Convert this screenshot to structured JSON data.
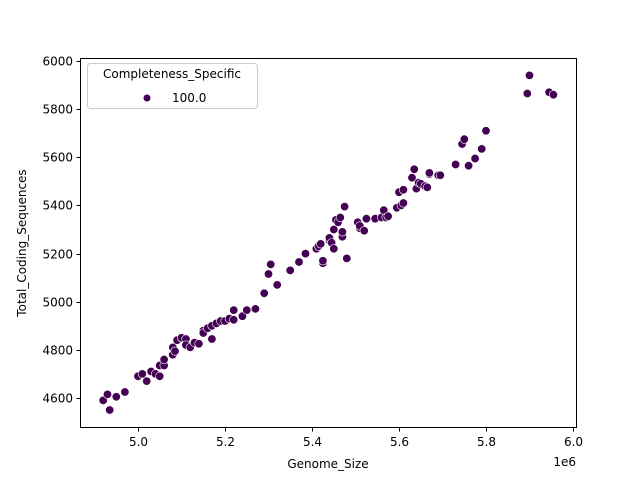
{
  "chart_data": {
    "type": "scatter",
    "title": "",
    "xlabel": "Genome_Size",
    "ylabel": "Total_Coding_Sequences",
    "x_offset_label": "1e6",
    "xlim": [
      4.88,
      6.02
    ],
    "ylim": [
      4470,
      6010
    ],
    "x_ticks": [
      5.0,
      5.2,
      5.4,
      5.6,
      5.8,
      6.0
    ],
    "x_tick_labels": [
      "5.0",
      "5.2",
      "5.4",
      "5.6",
      "5.8",
      "6.0"
    ],
    "y_ticks": [
      4600,
      4800,
      5000,
      5200,
      5400,
      5600,
      5800,
      6000
    ],
    "y_tick_labels": [
      "4600",
      "4800",
      "5000",
      "5200",
      "5400",
      "5600",
      "5800",
      "6000"
    ],
    "grid": false,
    "legend": {
      "title": "Completeness_Specific",
      "position": "upper left",
      "entries": [
        {
          "label": "100.0",
          "color": "#440154"
        }
      ]
    },
    "marker_color": "#440154",
    "series": [
      {
        "name": "100.0",
        "points": [
          [
            4.92,
            4590
          ],
          [
            4.93,
            4615
          ],
          [
            4.935,
            4550
          ],
          [
            4.95,
            4605
          ],
          [
            4.97,
            4625
          ],
          [
            5.0,
            4690
          ],
          [
            5.01,
            4700
          ],
          [
            5.02,
            4670
          ],
          [
            5.03,
            4710
          ],
          [
            5.04,
            4700
          ],
          [
            5.05,
            4735
          ],
          [
            5.06,
            4735
          ],
          [
            5.05,
            4690
          ],
          [
            5.06,
            4760
          ],
          [
            5.08,
            4780
          ],
          [
            5.08,
            4810
          ],
          [
            5.085,
            4795
          ],
          [
            5.09,
            4840
          ],
          [
            5.1,
            4850
          ],
          [
            5.11,
            4845
          ],
          [
            5.11,
            4820
          ],
          [
            5.12,
            4810
          ],
          [
            5.13,
            4830
          ],
          [
            5.14,
            4825
          ],
          [
            5.15,
            4880
          ],
          [
            5.15,
            4870
          ],
          [
            5.16,
            4890
          ],
          [
            5.17,
            4900
          ],
          [
            5.17,
            4845
          ],
          [
            5.18,
            4910
          ],
          [
            5.19,
            4920
          ],
          [
            5.2,
            4920
          ],
          [
            5.21,
            4930
          ],
          [
            5.22,
            4965
          ],
          [
            5.22,
            4925
          ],
          [
            5.24,
            4940
          ],
          [
            5.25,
            4965
          ],
          [
            5.27,
            4970
          ],
          [
            5.29,
            5035
          ],
          [
            5.3,
            5115
          ],
          [
            5.305,
            5155
          ],
          [
            5.32,
            5070
          ],
          [
            5.35,
            5130
          ],
          [
            5.37,
            5165
          ],
          [
            5.385,
            5200
          ],
          [
            5.41,
            5220
          ],
          [
            5.415,
            5230
          ],
          [
            5.42,
            5240
          ],
          [
            5.425,
            5160
          ],
          [
            5.425,
            5170
          ],
          [
            5.44,
            5255
          ],
          [
            5.44,
            5265
          ],
          [
            5.445,
            5245
          ],
          [
            5.45,
            5220
          ],
          [
            5.45,
            5300
          ],
          [
            5.455,
            5340
          ],
          [
            5.46,
            5330
          ],
          [
            5.465,
            5350
          ],
          [
            5.47,
            5270
          ],
          [
            5.47,
            5290
          ],
          [
            5.475,
            5395
          ],
          [
            5.48,
            5180
          ],
          [
            5.505,
            5330
          ],
          [
            5.51,
            5305
          ],
          [
            5.51,
            5315
          ],
          [
            5.52,
            5295
          ],
          [
            5.525,
            5345
          ],
          [
            5.545,
            5345
          ],
          [
            5.56,
            5350
          ],
          [
            5.565,
            5380
          ],
          [
            5.57,
            5350
          ],
          [
            5.575,
            5355
          ],
          [
            5.595,
            5390
          ],
          [
            5.6,
            5455
          ],
          [
            5.605,
            5400
          ],
          [
            5.61,
            5410
          ],
          [
            5.61,
            5465
          ],
          [
            5.63,
            5515
          ],
          [
            5.635,
            5550
          ],
          [
            5.64,
            5470
          ],
          [
            5.645,
            5495
          ],
          [
            5.65,
            5490
          ],
          [
            5.66,
            5480
          ],
          [
            5.665,
            5475
          ],
          [
            5.67,
            5530
          ],
          [
            5.67,
            5535
          ],
          [
            5.69,
            5525
          ],
          [
            5.695,
            5525
          ],
          [
            5.73,
            5570
          ],
          [
            5.745,
            5655
          ],
          [
            5.75,
            5675
          ],
          [
            5.76,
            5565
          ],
          [
            5.775,
            5595
          ],
          [
            5.79,
            5635
          ],
          [
            5.8,
            5710
          ],
          [
            5.895,
            5865
          ],
          [
            5.9,
            5940
          ],
          [
            5.945,
            5870
          ],
          [
            5.955,
            5860
          ]
        ]
      }
    ]
  }
}
